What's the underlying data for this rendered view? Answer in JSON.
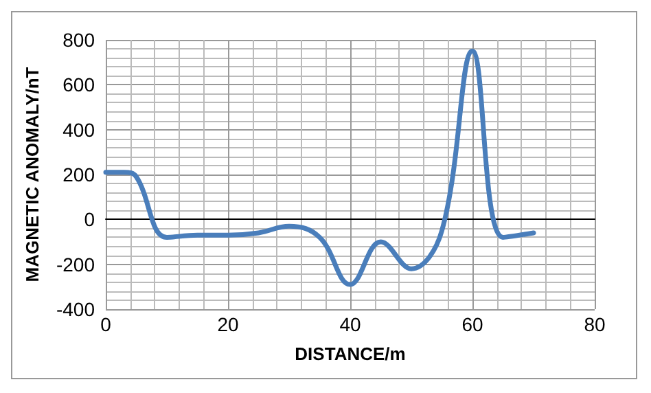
{
  "chart_data": {
    "type": "line",
    "xlabel": "DISTANCE/m",
    "ylabel": "MAGNETIC ANOMALY/nT",
    "x": [
      0,
      3,
      5,
      10,
      15,
      20,
      25,
      30,
      35,
      40,
      45,
      50,
      55,
      60,
      65,
      70
    ],
    "series": [
      {
        "color": "#4a7ebb",
        "values": [
          210,
          210,
          190,
          -80,
          -70,
          -70,
          -60,
          -30,
          -80,
          -290,
          -100,
          -220,
          -50,
          750,
          -80,
          -60
        ]
      }
    ],
    "xlim": [
      0,
      80
    ],
    "xticks": [
      0,
      20,
      40,
      60,
      80
    ],
    "ylim": [
      -400,
      800
    ],
    "yticks": [
      -400,
      -200,
      0,
      200,
      400,
      600,
      800
    ],
    "grid": true,
    "marker": "none",
    "line_style": "solid"
  }
}
